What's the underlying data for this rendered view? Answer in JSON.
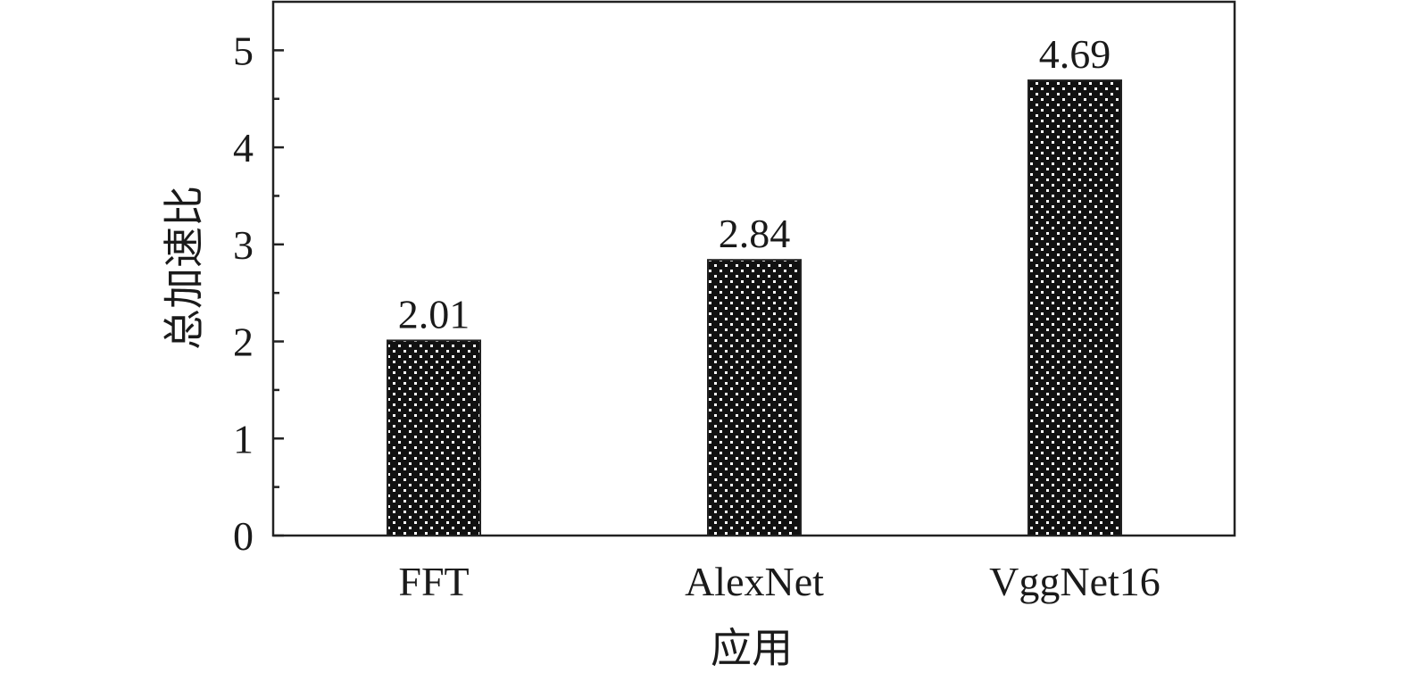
{
  "chart_data": {
    "type": "bar",
    "categories": [
      "FFT",
      "AlexNet",
      "VggNet16"
    ],
    "values": [
      2.01,
      2.84,
      4.69
    ],
    "value_labels": [
      "2.01",
      "2.84",
      "4.69"
    ],
    "title": "",
    "xlabel": "应用",
    "ylabel": "总加速比",
    "ylim": [
      0,
      5.5
    ],
    "yticks": [
      0,
      1,
      2,
      3,
      4,
      5
    ],
    "ytick_labels": [
      "0",
      "1",
      "2",
      "3",
      "4",
      "5"
    ],
    "grid": false,
    "legend": "none",
    "bar_fill": "dotted-black",
    "colors": {
      "bar": "#111111",
      "dots": "#ffffff",
      "axis": "#222222"
    }
  }
}
